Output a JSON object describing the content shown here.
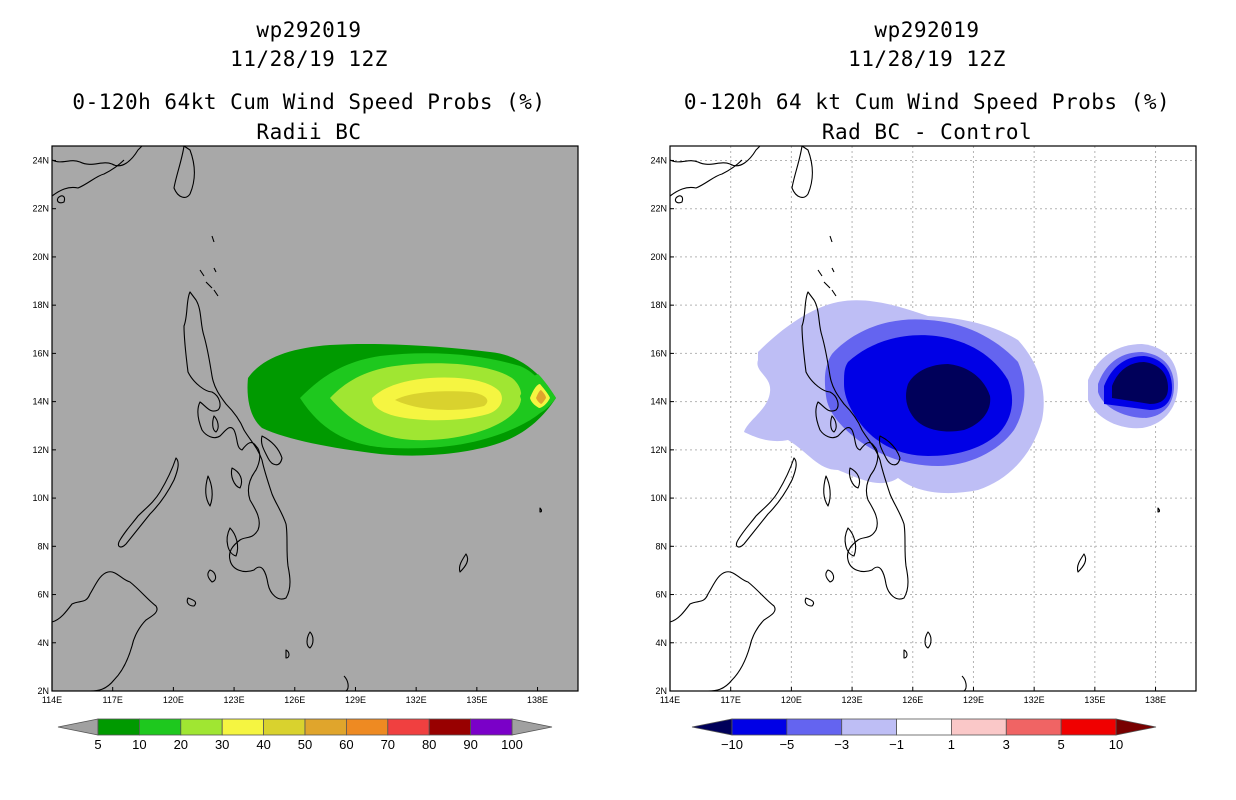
{
  "panels": {
    "left": {
      "title_line1": "wp292019",
      "title_line2": "11/28/19 12Z",
      "title_line3": "0-120h 64kt Cum Wind Speed Probs (%)",
      "title_line4": "Radii BC",
      "background_color": "#a8a8a8",
      "gridlines": false,
      "colorbar": {
        "labels": [
          "5",
          "10",
          "20",
          "30",
          "40",
          "50",
          "60",
          "70",
          "80",
          "90",
          "100"
        ],
        "colors": [
          "#009a00",
          "#1ec81e",
          "#a0e632",
          "#f5f541",
          "#d9d22e",
          "#e0a52c",
          "#ee8a22",
          "#f04040",
          "#980000",
          "#7a00c8"
        ],
        "extend_colors": [
          "#a0a0a0",
          "#a0a0a0"
        ]
      }
    },
    "right": {
      "title_line1": "wp292019",
      "title_line2": "11/28/19 12Z",
      "title_line3": "0-120h 64 kt Cum Wind Speed Probs (%)",
      "title_line4": "Rad BC - Control",
      "background_color": "#ffffff",
      "gridlines": true,
      "colorbar": {
        "labels": [
          "−10",
          "−5",
          "−3",
          "−1",
          "1",
          "3",
          "5",
          "10"
        ],
        "colors": [
          "#0000e6",
          "#6464f0",
          "#bebef5",
          "#ffffff",
          "#fac8c8",
          "#f06464",
          "#f00000"
        ],
        "extend_colors": [
          "#00005a",
          "#780000"
        ]
      }
    }
  },
  "map": {
    "lat_labels": [
      "24N",
      "22N",
      "20N",
      "18N",
      "16N",
      "14N",
      "12N",
      "10N",
      "8N",
      "6N",
      "4N",
      "2N"
    ],
    "lat_values": [
      24,
      22,
      20,
      18,
      16,
      14,
      12,
      10,
      8,
      6,
      4,
      2
    ],
    "lon_labels": [
      "114E",
      "117E",
      "120E",
      "123E",
      "126E",
      "129E",
      "132E",
      "135E",
      "138E"
    ],
    "lon_values": [
      114,
      117,
      120,
      123,
      126,
      129,
      132,
      135,
      138
    ],
    "lon_range": [
      114,
      140
    ],
    "lat_range": [
      2,
      24.6
    ]
  }
}
